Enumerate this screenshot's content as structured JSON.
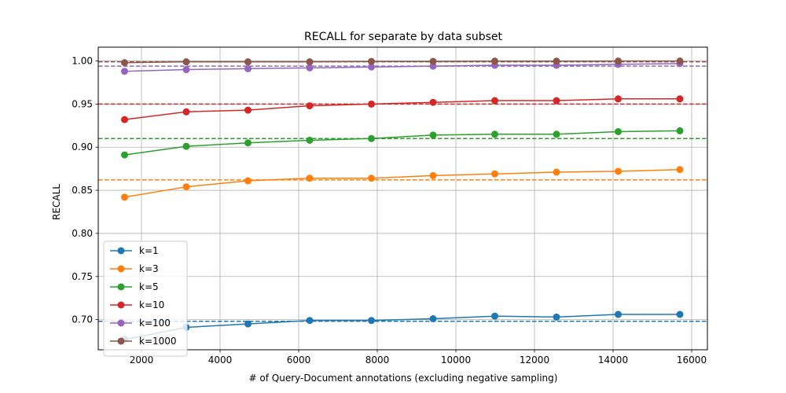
{
  "chart_data": {
    "type": "line",
    "title": "RECALL for separate by data subset",
    "xlabel": "# of Query-Document annotations (excluding negative sampling)",
    "ylabel": "RECALL",
    "xlim": [
      900,
      16400
    ],
    "ylim": [
      0.665,
      1.016
    ],
    "xticks": [
      2000,
      4000,
      6000,
      8000,
      10000,
      12000,
      14000,
      16000
    ],
    "xtick_labels": [
      "2000",
      "4000",
      "6000",
      "8000",
      "10000",
      "12000",
      "14000",
      "16000"
    ],
    "yticks": [
      0.7,
      0.75,
      0.8,
      0.85,
      0.9,
      0.95,
      1.0
    ],
    "ytick_labels": [
      "0.70",
      "0.75",
      "0.80",
      "0.85",
      "0.90",
      "0.95",
      "1.00"
    ],
    "grid": true,
    "legend_position": "lower-left",
    "x": [
      1570,
      3140,
      4710,
      6280,
      7850,
      9420,
      10990,
      12560,
      14130,
      15700
    ],
    "series": [
      {
        "name": "k=1",
        "color": "#1f77b4",
        "values": [
          0.677,
          0.691,
          0.695,
          0.699,
          0.699,
          0.701,
          0.704,
          0.703,
          0.706,
          0.706
        ],
        "baseline": 0.698
      },
      {
        "name": "k=3",
        "color": "#ff7f0e",
        "values": [
          0.842,
          0.854,
          0.861,
          0.864,
          0.864,
          0.867,
          0.869,
          0.871,
          0.872,
          0.874
        ],
        "baseline": 0.862
      },
      {
        "name": "k=5",
        "color": "#2ca02c",
        "values": [
          0.891,
          0.901,
          0.905,
          0.908,
          0.91,
          0.914,
          0.915,
          0.915,
          0.918,
          0.919
        ],
        "baseline": 0.91
      },
      {
        "name": "k=10",
        "color": "#d62728",
        "values": [
          0.932,
          0.941,
          0.943,
          0.948,
          0.95,
          0.952,
          0.954,
          0.954,
          0.956,
          0.956
        ],
        "baseline": 0.95
      },
      {
        "name": "k=100",
        "color": "#9467bd",
        "values": [
          0.988,
          0.99,
          0.991,
          0.992,
          0.993,
          0.994,
          0.995,
          0.995,
          0.996,
          0.997
        ],
        "baseline": 0.994
      },
      {
        "name": "k=1000",
        "color": "#8c564b",
        "values": [
          0.998,
          0.999,
          0.999,
          0.999,
          0.9995,
          0.9995,
          0.9998,
          0.9998,
          0.9999,
          0.9999
        ],
        "baseline": 0.999
      }
    ]
  }
}
